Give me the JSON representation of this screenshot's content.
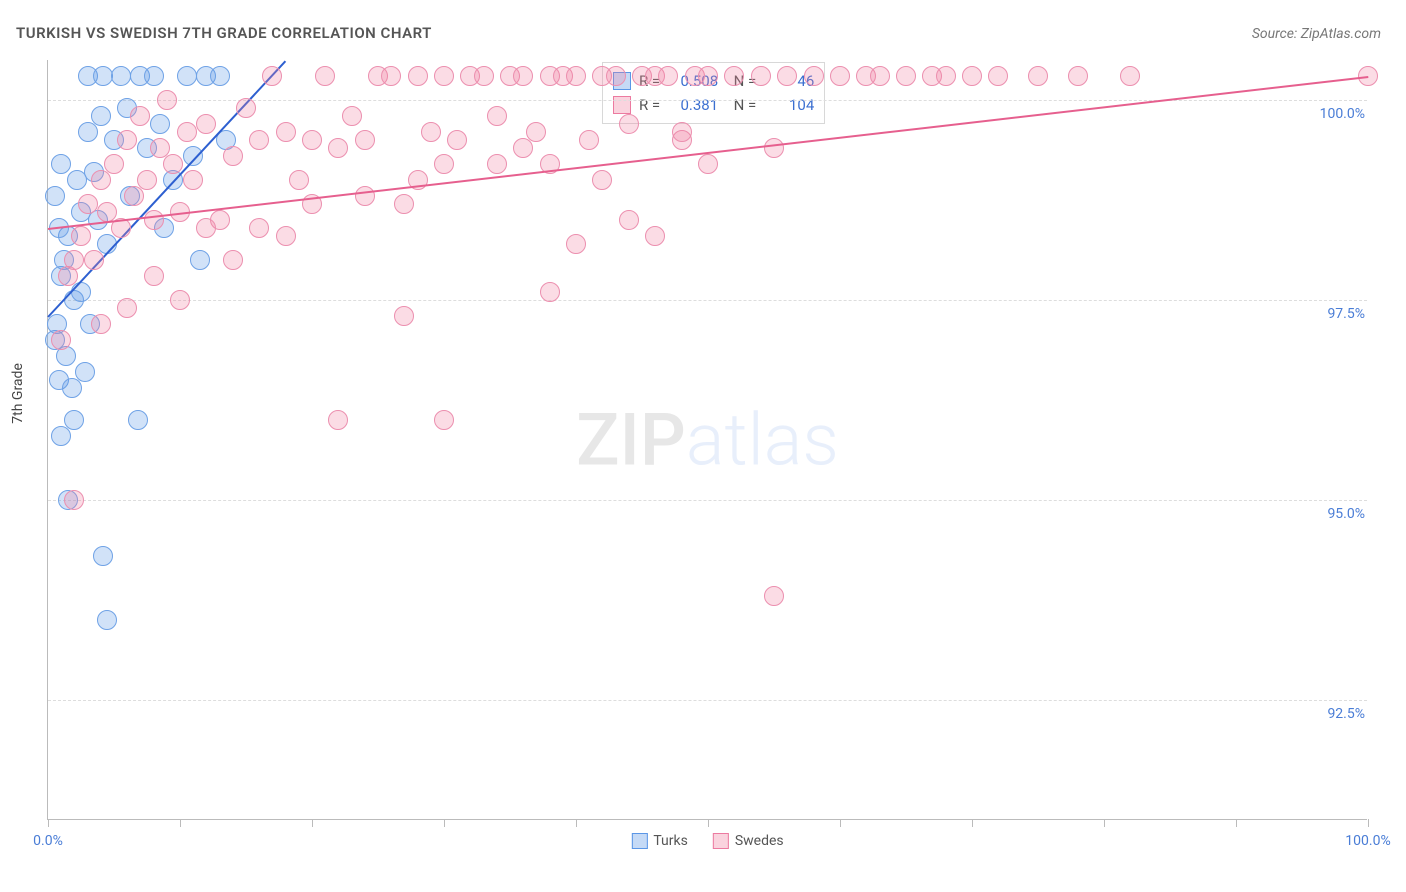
{
  "title": "TURKISH VS SWEDISH 7TH GRADE CORRELATION CHART",
  "source": "Source: ZipAtlas.com",
  "y_axis_label": "7th Grade",
  "watermark": {
    "left": "ZIP",
    "right": "atlas"
  },
  "chart": {
    "type": "scatter",
    "background_color": "#ffffff",
    "grid_color": "#dddddd",
    "axis_color": "#bbbbbb",
    "xlim": [
      0,
      100
    ],
    "ylim": [
      91.0,
      100.5
    ],
    "x_ticks": [
      0,
      10,
      20,
      30,
      40,
      50,
      60,
      70,
      80,
      90,
      100
    ],
    "x_tick_labels": {
      "0": "0.0%",
      "100": "100.0%"
    },
    "y_ticks": [
      92.5,
      95.0,
      97.5,
      100.0
    ],
    "y_tick_labels": [
      "92.5%",
      "95.0%",
      "97.5%",
      "100.0%"
    ],
    "marker_radius": 10,
    "marker_stroke_width": 1.5,
    "label_fontsize": 14,
    "title_fontsize": 15,
    "tick_color": "#4a7dd6"
  },
  "legend_stats": [
    {
      "swatch_fill": "rgba(90,150,230,0.35)",
      "swatch_border": "#5a96e6",
      "R": "0.508",
      "N": "46"
    },
    {
      "swatch_fill": "rgba(240,130,160,0.35)",
      "swatch_border": "#ec7aa0",
      "R": "0.381",
      "N": "104"
    }
  ],
  "bottom_legend": [
    {
      "label": "Turks",
      "fill": "rgba(90,150,230,0.35)",
      "border": "#5a96e6"
    },
    {
      "label": "Swedes",
      "fill": "rgba(240,130,160,0.35)",
      "border": "#ec7aa0"
    }
  ],
  "series": [
    {
      "name": "Turks",
      "fill": "rgba(90,150,230,0.28)",
      "stroke": "#6fa2e6",
      "trend_color": "#2d5fd0",
      "trend": {
        "x1": 0,
        "y1": 97.3,
        "x2": 18,
        "y2": 100.5
      },
      "points": [
        [
          0.5,
          97.0
        ],
        [
          0.7,
          97.2
        ],
        [
          0.8,
          96.5
        ],
        [
          1.0,
          95.8
        ],
        [
          1.0,
          97.8
        ],
        [
          1.2,
          98.0
        ],
        [
          1.4,
          96.8
        ],
        [
          1.5,
          98.3
        ],
        [
          1.8,
          96.4
        ],
        [
          2.0,
          97.5
        ],
        [
          2.2,
          99.0
        ],
        [
          2.5,
          98.6
        ],
        [
          2.8,
          96.6
        ],
        [
          3.0,
          99.6
        ],
        [
          3.0,
          100.3
        ],
        [
          3.5,
          99.1
        ],
        [
          3.8,
          98.5
        ],
        [
          4.0,
          99.8
        ],
        [
          4.2,
          100.3
        ],
        [
          4.5,
          98.2
        ],
        [
          5.0,
          99.5
        ],
        [
          5.5,
          100.3
        ],
        [
          6.0,
          99.9
        ],
        [
          6.2,
          98.8
        ],
        [
          6.8,
          96.0
        ],
        [
          7.0,
          100.3
        ],
        [
          7.5,
          99.4
        ],
        [
          8.0,
          100.3
        ],
        [
          8.5,
          99.7
        ],
        [
          8.8,
          98.4
        ],
        [
          9.5,
          99.0
        ],
        [
          10.5,
          100.3
        ],
        [
          11.0,
          99.3
        ],
        [
          11.5,
          98.0
        ],
        [
          12.0,
          100.3
        ],
        [
          13.0,
          100.3
        ],
        [
          13.5,
          99.5
        ],
        [
          4.5,
          93.5
        ],
        [
          4.2,
          94.3
        ],
        [
          1.5,
          95.0
        ],
        [
          2.0,
          96.0
        ],
        [
          2.5,
          97.6
        ],
        [
          3.2,
          97.2
        ],
        [
          0.8,
          98.4
        ],
        [
          0.5,
          98.8
        ],
        [
          1.0,
          99.2
        ]
      ]
    },
    {
      "name": "Swedes",
      "fill": "rgba(240,130,160,0.28)",
      "stroke": "#ec8faf",
      "trend_color": "#e65f8e",
      "trend": {
        "x1": 0,
        "y1": 98.4,
        "x2": 100,
        "y2": 100.3
      },
      "points": [
        [
          1.0,
          97.0
        ],
        [
          1.5,
          97.8
        ],
        [
          2.0,
          95.0
        ],
        [
          2.5,
          98.3
        ],
        [
          3.0,
          98.7
        ],
        [
          3.5,
          98.0
        ],
        [
          4.0,
          99.0
        ],
        [
          4.5,
          98.6
        ],
        [
          5.0,
          99.2
        ],
        [
          5.5,
          98.4
        ],
        [
          6.0,
          99.5
        ],
        [
          6.5,
          98.8
        ],
        [
          7.0,
          99.8
        ],
        [
          7.5,
          99.0
        ],
        [
          8.0,
          98.5
        ],
        [
          8.5,
          99.4
        ],
        [
          9.0,
          100.0
        ],
        [
          9.5,
          99.2
        ],
        [
          10.0,
          98.6
        ],
        [
          10.5,
          99.6
        ],
        [
          11.0,
          99.0
        ],
        [
          12.0,
          99.7
        ],
        [
          13.0,
          98.5
        ],
        [
          14.0,
          99.3
        ],
        [
          15.0,
          99.9
        ],
        [
          16.0,
          99.5
        ],
        [
          17.0,
          100.3
        ],
        [
          18.0,
          99.6
        ],
        [
          19.0,
          99.0
        ],
        [
          20.0,
          99.5
        ],
        [
          21.0,
          100.3
        ],
        [
          22.0,
          99.4
        ],
        [
          23.0,
          99.8
        ],
        [
          24.0,
          99.5
        ],
        [
          25.0,
          100.3
        ],
        [
          22.0,
          96.0
        ],
        [
          26.0,
          100.3
        ],
        [
          27.0,
          98.7
        ],
        [
          28.0,
          100.3
        ],
        [
          29.0,
          99.6
        ],
        [
          30.0,
          100.3
        ],
        [
          27.0,
          97.3
        ],
        [
          30.0,
          96.0
        ],
        [
          31.0,
          99.5
        ],
        [
          32.0,
          100.3
        ],
        [
          33.0,
          100.3
        ],
        [
          34.0,
          99.8
        ],
        [
          35.0,
          100.3
        ],
        [
          36.0,
          100.3
        ],
        [
          37.0,
          99.6
        ],
        [
          38.0,
          100.3
        ],
        [
          38.0,
          97.6
        ],
        [
          39.0,
          100.3
        ],
        [
          40.0,
          100.3
        ],
        [
          40.0,
          98.2
        ],
        [
          41.0,
          99.5
        ],
        [
          42.0,
          100.3
        ],
        [
          43.0,
          100.3
        ],
        [
          44.0,
          99.7
        ],
        [
          45.0,
          100.3
        ],
        [
          46.0,
          100.3
        ],
        [
          47.0,
          100.3
        ],
        [
          48.0,
          99.5
        ],
        [
          49.0,
          100.3
        ],
        [
          50.0,
          100.3
        ],
        [
          44.0,
          98.5
        ],
        [
          52.0,
          100.3
        ],
        [
          54.0,
          100.3
        ],
        [
          55.0,
          99.4
        ],
        [
          56.0,
          100.3
        ],
        [
          58.0,
          100.3
        ],
        [
          60.0,
          100.3
        ],
        [
          62.0,
          100.3
        ],
        [
          63.0,
          100.3
        ],
        [
          65.0,
          100.3
        ],
        [
          67.0,
          100.3
        ],
        [
          70.0,
          100.3
        ],
        [
          68.0,
          100.3
        ],
        [
          72.0,
          100.3
        ],
        [
          75.0,
          100.3
        ],
        [
          78.0,
          100.3
        ],
        [
          82.0,
          100.3
        ],
        [
          42.0,
          99.0
        ],
        [
          50.0,
          99.2
        ],
        [
          38.0,
          99.2
        ],
        [
          34.0,
          99.2
        ],
        [
          30.0,
          99.2
        ],
        [
          24.0,
          98.8
        ],
        [
          20.0,
          98.7
        ],
        [
          16.0,
          98.4
        ],
        [
          12.0,
          98.4
        ],
        [
          8.0,
          97.8
        ],
        [
          6.0,
          97.4
        ],
        [
          4.0,
          97.2
        ],
        [
          2.0,
          98.0
        ],
        [
          46.0,
          98.3
        ],
        [
          55.0,
          93.8
        ],
        [
          100.0,
          100.3
        ],
        [
          10.0,
          97.5
        ],
        [
          14.0,
          98.0
        ],
        [
          18.0,
          98.3
        ],
        [
          28.0,
          99.0
        ],
        [
          36.0,
          99.4
        ],
        [
          48.0,
          99.6
        ]
      ]
    }
  ]
}
